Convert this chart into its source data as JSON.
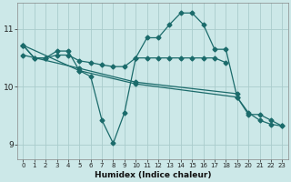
{
  "xlabel": "Humidex (Indice chaleur)",
  "bg_color": "#cce8e8",
  "grid_color": "#aacccc",
  "line_color": "#1b6b6b",
  "markersize": 2.5,
  "linewidth": 0.9,
  "xlim": [
    -0.5,
    23.5
  ],
  "ylim": [
    8.75,
    11.45
  ],
  "xticks": [
    0,
    1,
    2,
    3,
    4,
    5,
    6,
    7,
    8,
    9,
    10,
    11,
    12,
    13,
    14,
    15,
    16,
    17,
    18,
    19,
    20,
    21,
    22,
    23
  ],
  "yticks": [
    9,
    10,
    11
  ],
  "lines": [
    {
      "x": [
        0,
        1,
        2,
        3,
        4,
        5,
        6,
        7,
        8,
        9,
        10,
        11,
        12,
        13,
        14,
        15,
        16,
        17,
        18,
        19,
        20,
        21,
        22,
        23
      ],
      "y": [
        10.72,
        10.5,
        10.5,
        10.62,
        10.62,
        10.28,
        10.18,
        9.42,
        9.02,
        9.55,
        10.5,
        10.85,
        10.85,
        11.08,
        11.28,
        11.28,
        11.08,
        10.65,
        10.65,
        9.82,
        9.52,
        9.52,
        9.42,
        9.32
      ]
    },
    {
      "x": [
        0,
        1,
        2,
        3,
        4,
        5,
        6,
        7,
        8,
        9,
        10,
        11,
        12,
        13,
        14,
        15,
        16,
        17,
        18
      ],
      "y": [
        10.72,
        10.5,
        10.5,
        10.55,
        10.55,
        10.45,
        10.42,
        10.38,
        10.35,
        10.35,
        10.5,
        10.5,
        10.5,
        10.5,
        10.5,
        10.5,
        10.5,
        10.5,
        10.42
      ]
    },
    {
      "x": [
        0,
        5,
        10,
        19
      ],
      "y": [
        10.55,
        10.32,
        10.08,
        9.88
      ]
    },
    {
      "x": [
        0,
        5,
        10,
        19,
        20,
        21,
        22,
        23
      ],
      "y": [
        10.72,
        10.28,
        10.05,
        9.82,
        9.55,
        9.42,
        9.35,
        9.32
      ]
    }
  ]
}
